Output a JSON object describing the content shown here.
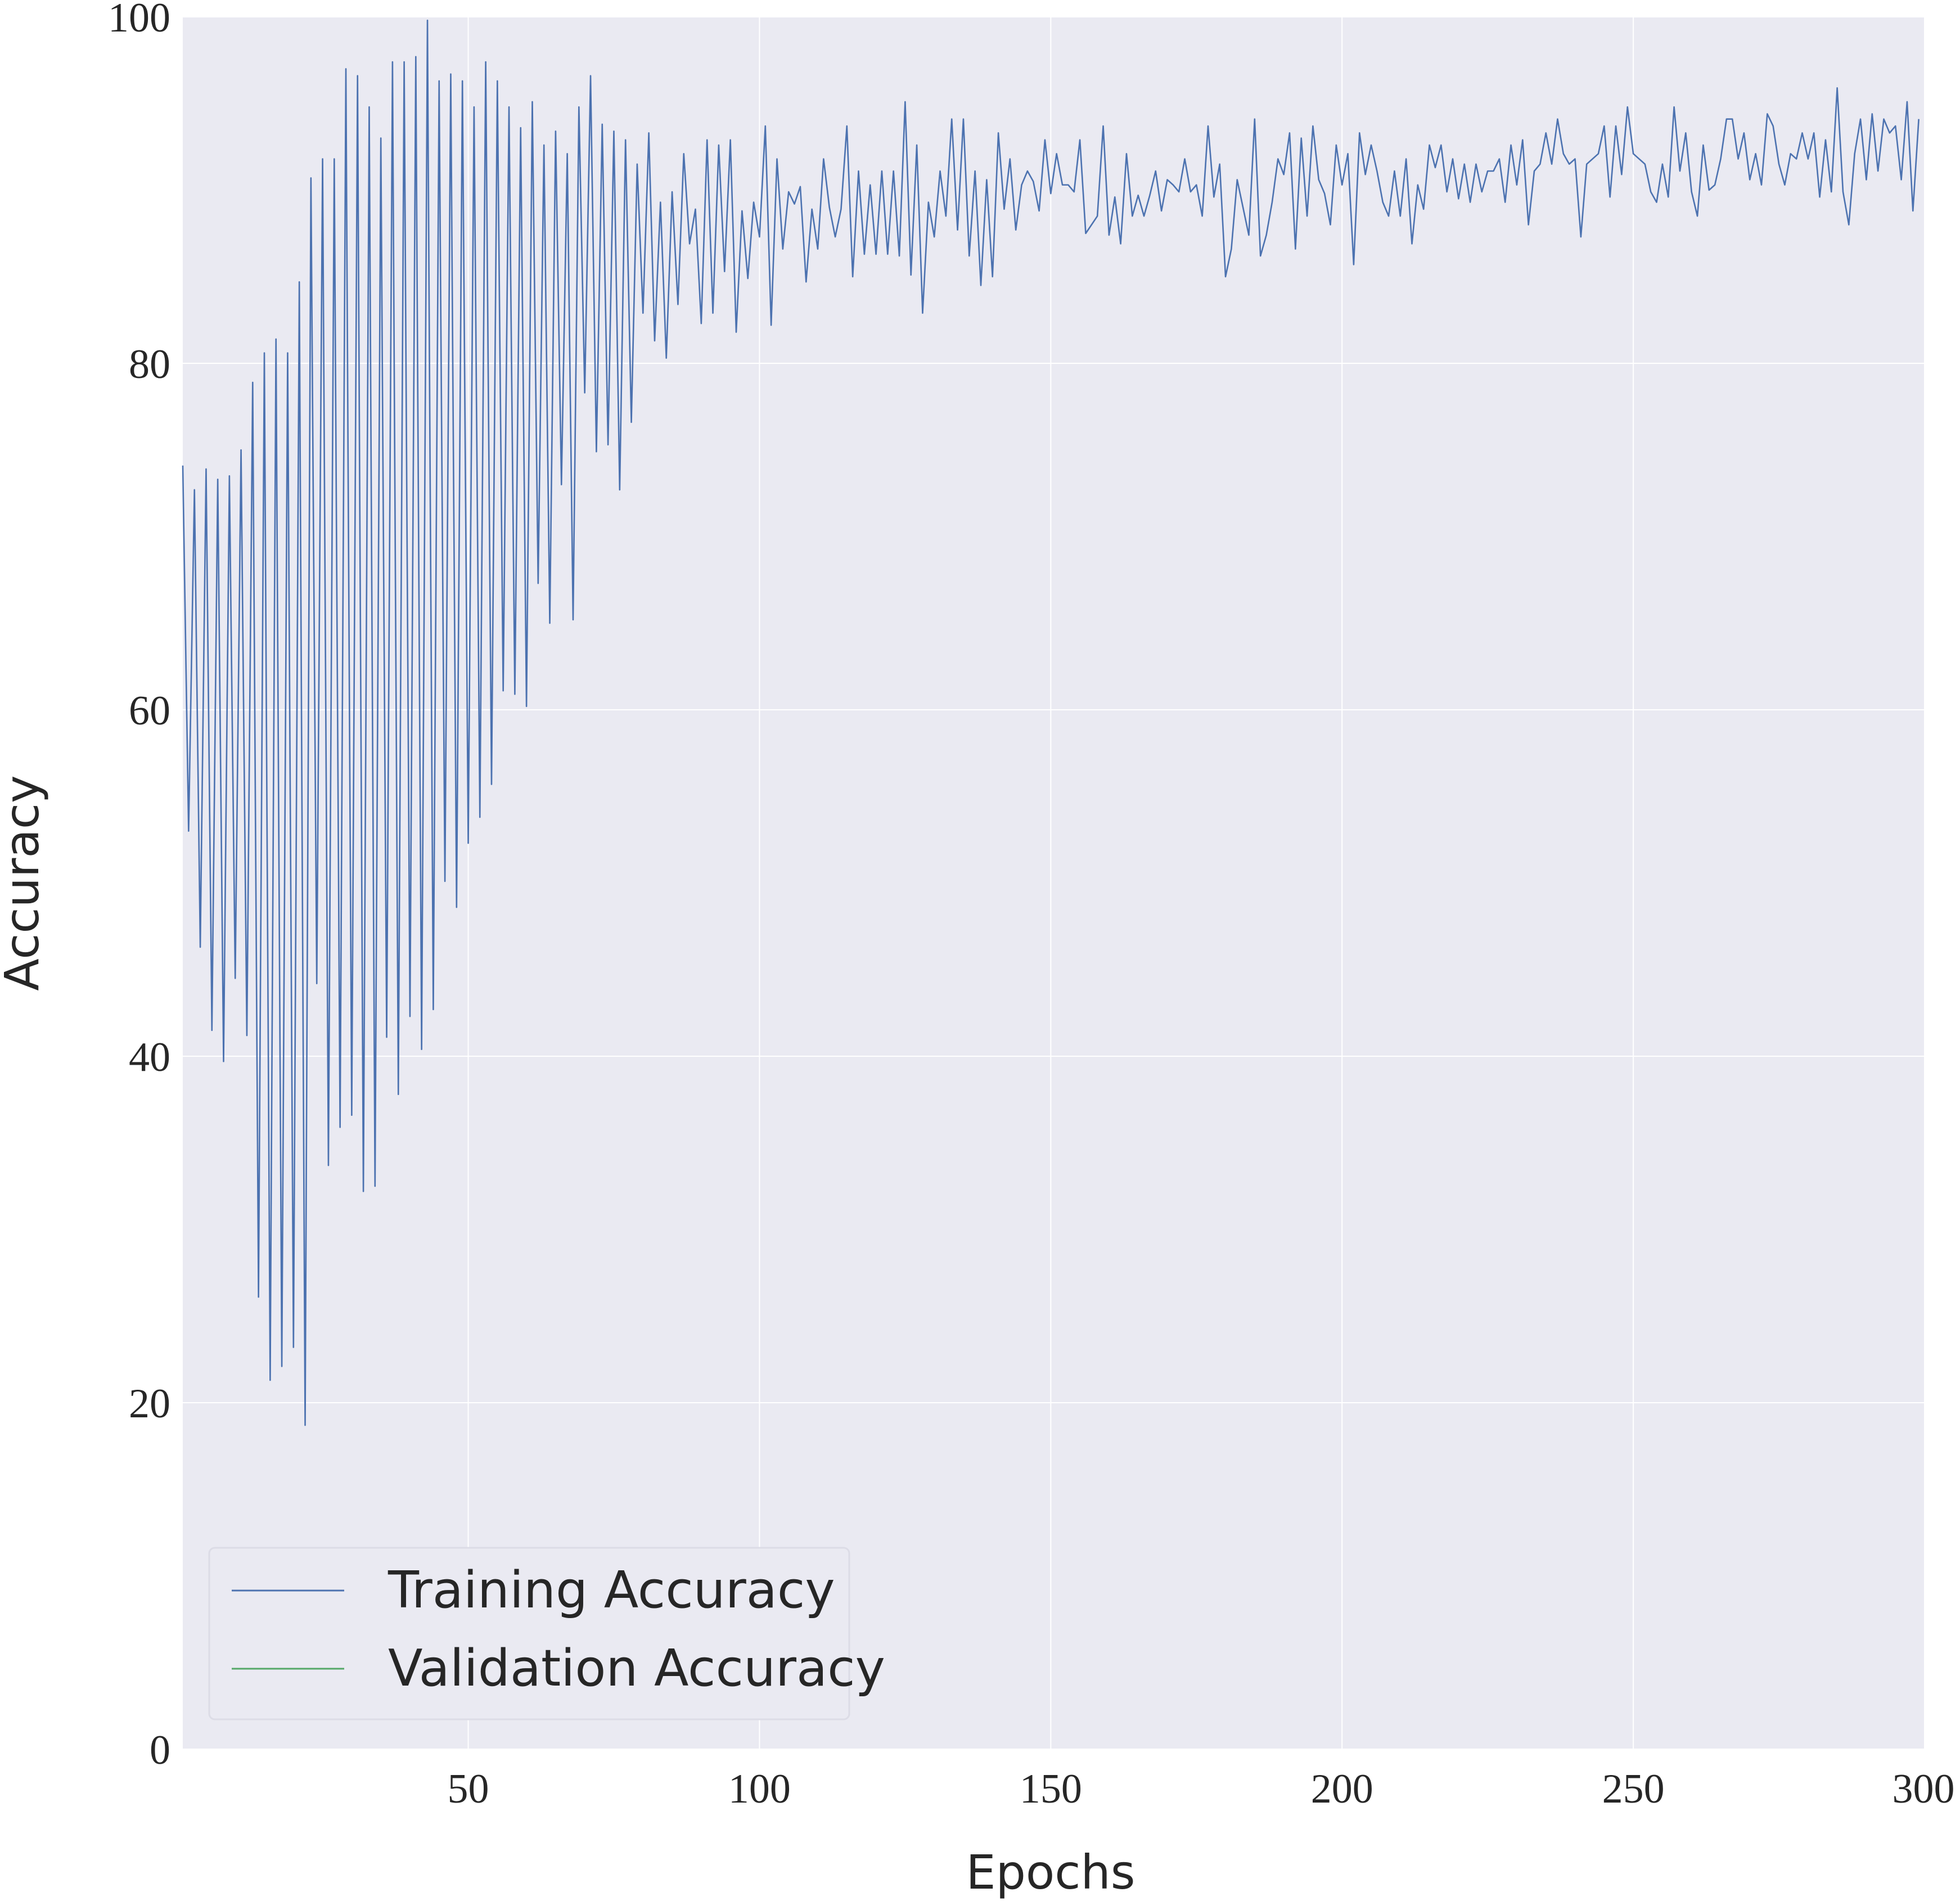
{
  "chart_data": {
    "type": "line",
    "title": "",
    "xlabel": "Epochs",
    "ylabel": "Accuracy",
    "xlim": [
      1,
      300
    ],
    "ylim": [
      0,
      100
    ],
    "xticks": [
      50,
      100,
      150,
      200,
      250,
      300
    ],
    "yticks": [
      0,
      20,
      40,
      60,
      80,
      100
    ],
    "grid": true,
    "legend_position": "bottom-left",
    "colors": {
      "background": "#EAEAF2",
      "grid": "#FFFFFF",
      "training": "#4C72B0",
      "validation": "#55A868"
    },
    "series": [
      {
        "name": "Training Accuracy",
        "color": "#4C72B0",
        "x_start": 1,
        "values": [
          74.1,
          53.0,
          72.7,
          46.3,
          73.9,
          41.5,
          73.3,
          39.7,
          73.5,
          44.5,
          75.0,
          41.2,
          78.9,
          26.1,
          80.6,
          21.3,
          81.4,
          22.1,
          80.6,
          23.2,
          84.7,
          18.7,
          90.7,
          44.2,
          91.8,
          33.7,
          91.8,
          35.9,
          97.0,
          36.6,
          96.6,
          32.2,
          94.8,
          32.5,
          93.0,
          41.1,
          97.4,
          37.8,
          97.4,
          42.3,
          97.7,
          40.4,
          99.8,
          42.7,
          96.3,
          50.1,
          96.7,
          48.6,
          96.3,
          52.3,
          94.8,
          53.8,
          97.4,
          55.7,
          96.3,
          61.1,
          94.8,
          60.9,
          93.6,
          60.2,
          95.1,
          67.3,
          92.6,
          65.0,
          93.4,
          73.0,
          92.1,
          65.2,
          94.8,
          78.3,
          96.6,
          74.9,
          93.8,
          75.3,
          93.4,
          72.7,
          92.9,
          76.6,
          91.5,
          82.9,
          93.3,
          81.3,
          89.3,
          80.3,
          89.9,
          83.4,
          92.1,
          86.9,
          88.9,
          82.3,
          92.9,
          82.9,
          92.6,
          85.3,
          92.9,
          81.8,
          88.8,
          84.9,
          89.3,
          87.3,
          93.7,
          82.2,
          91.8,
          86.6,
          89.9,
          89.2,
          90.2,
          84.7,
          88.9,
          86.6,
          91.8,
          89.0,
          87.3,
          88.9,
          93.7,
          85.0,
          91.1,
          86.3,
          90.3,
          86.3,
          91.1,
          86.3,
          91.1,
          86.2,
          95.1,
          85.1,
          92.6,
          82.9,
          89.3,
          87.3,
          91.1,
          88.5,
          94.1,
          87.7,
          94.1,
          86.2,
          91.1,
          84.5,
          90.6,
          85.0,
          93.3,
          88.9,
          91.8,
          87.7,
          90.3,
          91.1,
          90.5,
          88.8,
          92.9,
          89.8,
          92.1,
          90.3,
          90.3,
          89.9,
          92.9,
          87.5,
          88.0,
          88.5,
          93.7,
          87.4,
          89.6,
          86.9,
          92.1,
          88.5,
          89.7,
          88.5,
          89.7,
          91.1,
          88.8,
          90.6,
          90.3,
          89.9,
          91.8,
          89.9,
          90.3,
          88.5,
          93.7,
          89.6,
          91.5,
          85.0,
          86.6,
          90.6,
          89.0,
          87.4,
          94.1,
          86.2,
          87.4,
          89.3,
          91.8,
          90.9,
          93.3,
          86.6,
          93.0,
          88.5,
          93.7,
          90.6,
          89.8,
          88.0,
          92.6,
          90.3,
          92.1,
          85.7,
          93.3,
          90.9,
          92.6,
          91.1,
          89.3,
          88.5,
          91.1,
          88.5,
          91.8,
          86.9,
          90.3,
          88.9,
          92.6,
          91.3,
          92.6,
          89.9,
          91.8,
          89.5,
          91.5,
          89.3,
          91.5,
          89.9,
          91.1,
          91.1,
          91.8,
          89.3,
          92.6,
          90.3,
          92.9,
          88.0,
          91.1,
          91.5,
          93.3,
          91.5,
          94.1,
          92.1,
          91.5,
          91.8,
          87.3,
          91.5,
          91.8,
          92.1,
          93.7,
          89.6,
          93.7,
          90.9,
          94.8,
          92.1,
          91.8,
          91.5,
          89.9,
          89.3,
          91.5,
          89.6,
          94.8,
          91.1,
          93.3,
          89.9,
          88.5,
          92.6,
          90.0,
          90.3,
          91.8,
          94.1,
          94.1,
          91.8,
          93.3,
          90.6,
          92.1,
          90.3,
          94.4,
          93.7,
          91.5,
          90.3,
          92.1,
          91.8,
          93.3,
          91.8,
          93.3,
          89.6,
          92.9,
          89.9,
          95.9,
          89.9,
          88.0,
          92.1,
          94.1,
          90.6,
          94.4,
          91.1,
          94.1,
          93.3,
          93.7,
          90.6,
          95.1,
          88.8,
          94.1
        ]
      },
      {
        "name": "Validation Accuracy",
        "color": "#55A868",
        "values": []
      }
    ]
  }
}
